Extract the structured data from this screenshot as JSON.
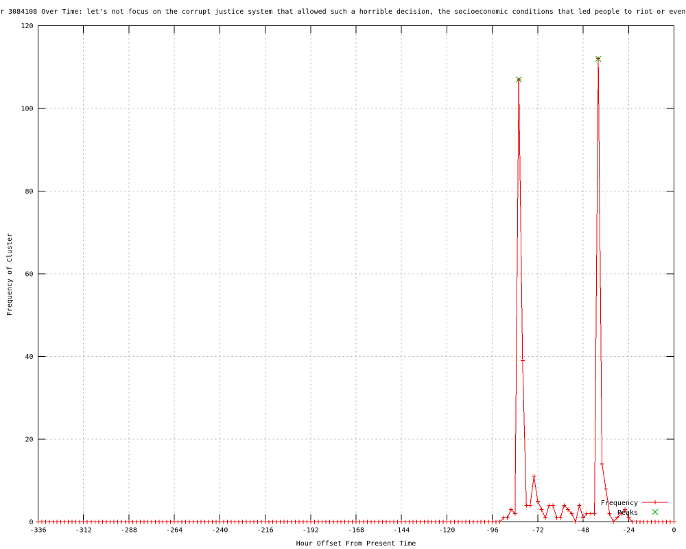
{
  "window": {
    "background": "#ffffff"
  },
  "chart_data": {
    "type": "line",
    "title": "r 3084108 Over Time: let's not focus on the corrupt justice system that allowed such a horrible decision, the socioeconomic conditions that led people to riot or even",
    "xlabel": "Hour Offset From Present Time",
    "ylabel": "Frequency of Cluster",
    "xlim": [
      -336,
      0
    ],
    "ylim": [
      0,
      120
    ],
    "x_ticks": [
      -336,
      -312,
      -288,
      -264,
      -240,
      -216,
      -192,
      -168,
      -144,
      -120,
      -96,
      -72,
      -48,
      -24,
      0
    ],
    "y_ticks": [
      0,
      20,
      40,
      60,
      80,
      100,
      120
    ],
    "grid": true,
    "legend_position": "bottom-right",
    "colors": {
      "grid": "#b0b0b0",
      "axis": "#000000",
      "frequency": "#ee0000",
      "peaks": "#00a000"
    },
    "series": [
      {
        "name": "Frequency",
        "marker": "plus",
        "color_key": "frequency",
        "x_start": -336,
        "x_step": 2,
        "values": [
          0,
          0,
          0,
          0,
          0,
          0,
          0,
          0,
          0,
          0,
          0,
          0,
          0,
          0,
          0,
          0,
          0,
          0,
          0,
          0,
          0,
          0,
          0,
          0,
          0,
          0,
          0,
          0,
          0,
          0,
          0,
          0,
          0,
          0,
          0,
          0,
          0,
          0,
          0,
          0,
          0,
          0,
          0,
          0,
          0,
          0,
          0,
          0,
          0,
          0,
          0,
          0,
          0,
          0,
          0,
          0,
          0,
          0,
          0,
          0,
          0,
          0,
          0,
          0,
          0,
          0,
          0,
          0,
          0,
          0,
          0,
          0,
          0,
          0,
          0,
          0,
          0,
          0,
          0,
          0,
          0,
          0,
          0,
          0,
          0,
          0,
          0,
          0,
          0,
          0,
          0,
          0,
          0,
          0,
          0,
          0,
          0,
          0,
          0,
          0,
          0,
          0,
          0,
          0,
          0,
          0,
          0,
          0,
          0,
          0,
          0,
          0,
          0,
          0,
          0,
          0,
          0,
          0,
          0,
          0,
          0,
          0,
          0,
          1,
          1,
          3,
          2,
          107,
          39,
          4,
          4,
          11,
          5,
          3,
          1,
          4,
          4,
          1,
          1,
          4,
          3,
          2,
          0,
          4,
          1,
          2,
          2,
          2,
          112,
          14,
          8,
          2,
          0,
          1,
          2,
          3,
          1,
          0,
          0,
          0,
          0,
          0,
          0,
          0,
          0,
          0,
          0,
          0,
          0
        ]
      },
      {
        "name": "Peaks",
        "marker": "cross",
        "color_key": "peaks",
        "points": [
          [
            -82,
            107
          ],
          [
            -40,
            112
          ]
        ]
      }
    ]
  }
}
